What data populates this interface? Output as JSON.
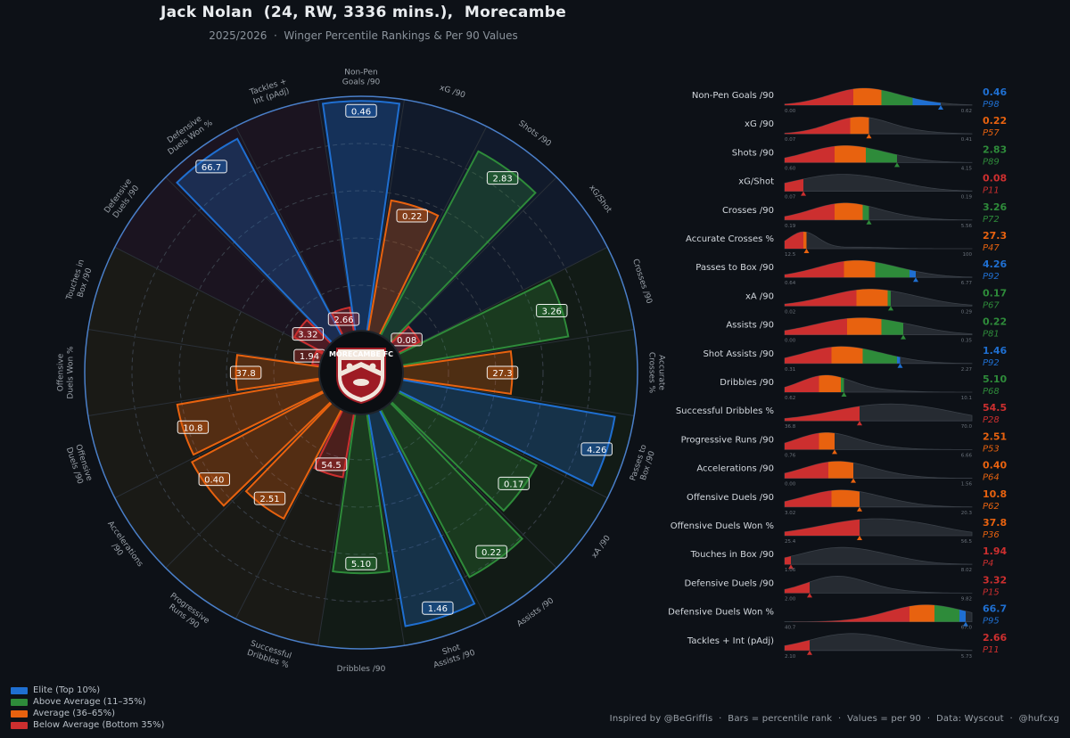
{
  "header": {
    "title": "Jack Nolan  (24, RW, 3336 mins.),  Morecambe",
    "subtitle": "2025/2026  ·  Winger Percentile Rankings & Per 90 Values"
  },
  "badge": {
    "text": "MORECAMBE FC"
  },
  "colors": {
    "elite": "#1f6fd1",
    "above": "#2e8b3a",
    "average": "#e8620f",
    "below": "#cc2f2f",
    "background": "#0d1117"
  },
  "legend": [
    {
      "label": "Elite (Top 10%)",
      "color": "#1f6fd1"
    },
    {
      "label": "Above Average (11–35%)",
      "color": "#2e8b3a"
    },
    {
      "label": "Average (36–65%)",
      "color": "#e8620f"
    },
    {
      "label": "Below Average (Bottom 35%)",
      "color": "#cc2f2f"
    }
  ],
  "footer": "Inspired by @BeGriffis  ·  Bars = percentile rank  ·  Values = per 90  ·  Data: Wyscout  ·  @hufcxg",
  "chart_data": {
    "type": "radial-bar",
    "radial_range": [
      0,
      100
    ],
    "metrics": [
      {
        "label": "Non-Pen Goals /90",
        "radar_label": "Non-Pen\nGoals /90",
        "value": "0.46",
        "percentile": 98,
        "tier": "elite",
        "p_label": "P98",
        "range": [
          "0.00",
          "0.62"
        ]
      },
      {
        "label": "xG /90",
        "radar_label": "xG /90",
        "value": "0.22",
        "percentile": 57,
        "tier": "average",
        "p_label": "P57",
        "range": [
          "0.07",
          "0.41"
        ]
      },
      {
        "label": "Shots /90",
        "radar_label": "Shots /90",
        "value": "2.83",
        "percentile": 89,
        "tier": "above",
        "p_label": "P89",
        "range": [
          "0.60",
          "4.15"
        ]
      },
      {
        "label": "xG/Shot",
        "radar_label": "xG/Shot",
        "value": "0.08",
        "percentile": 11,
        "tier": "below",
        "p_label": "P11",
        "range": [
          "0.07",
          "0.19"
        ]
      },
      {
        "label": "Crosses /90",
        "radar_label": "Crosses /90",
        "value": "3.26",
        "percentile": 72,
        "tier": "above",
        "p_label": "P72",
        "range": [
          "0.19",
          "5.56"
        ]
      },
      {
        "label": "Accurate Crosses %",
        "radar_label": "Accurate\nCrosses %",
        "value": "27.3",
        "percentile": 47,
        "tier": "average",
        "p_label": "P47",
        "range": [
          "12.5",
          "100"
        ]
      },
      {
        "label": "Passes to Box /90",
        "radar_label": "Passes to\nBox /90",
        "value": "4.26",
        "percentile": 92,
        "tier": "elite",
        "p_label": "P92",
        "range": [
          "0.64",
          "6.77"
        ]
      },
      {
        "label": "xA /90",
        "radar_label": "xA /90",
        "value": "0.17",
        "percentile": 67,
        "tier": "above",
        "p_label": "P67",
        "range": [
          "0.02",
          "0.29"
        ]
      },
      {
        "label": "Assists /90",
        "radar_label": "Assists /90",
        "value": "0.22",
        "percentile": 81,
        "tier": "above",
        "p_label": "P81",
        "range": [
          "0.00",
          "0.35"
        ]
      },
      {
        "label": "Shot Assists /90",
        "radar_label": "Shot\nAssists /90",
        "value": "1.46",
        "percentile": 92,
        "tier": "elite",
        "p_label": "P92",
        "range": [
          "0.31",
          "2.27"
        ]
      },
      {
        "label": "Dribbles /90",
        "radar_label": "Dribbles /90",
        "value": "5.10",
        "percentile": 68,
        "tier": "above",
        "p_label": "P68",
        "range": [
          "0.62",
          "10.1"
        ]
      },
      {
        "label": "Successful Dribbles %",
        "radar_label": "Successful\nDribbles %",
        "value": "54.5",
        "percentile": 28,
        "tier": "below",
        "p_label": "P28",
        "range": [
          "36.8",
          "70.0"
        ]
      },
      {
        "label": "Progressive Runs /90",
        "radar_label": "Progressive\nRuns /90",
        "value": "2.51",
        "percentile": 53,
        "tier": "average",
        "p_label": "P53",
        "range": [
          "0.76",
          "6.66"
        ]
      },
      {
        "label": "Accelerations /90",
        "radar_label": "Accelerations\n/90",
        "value": "0.40",
        "percentile": 64,
        "tier": "average",
        "p_label": "P64",
        "range": [
          "0.00",
          "1.56"
        ]
      },
      {
        "label": "Offensive Duels /90",
        "radar_label": "Offensive\nDuels /90",
        "value": "10.8",
        "percentile": 62,
        "tier": "average",
        "p_label": "P62",
        "range": [
          "3.02",
          "20.3"
        ]
      },
      {
        "label": "Offensive Duels Won %",
        "radar_label": "Offensive\nDuels Won %",
        "value": "37.8",
        "percentile": 36,
        "tier": "average",
        "p_label": "P36",
        "range": [
          "25.4",
          "56.5"
        ]
      },
      {
        "label": "Touches in Box /90",
        "radar_label": "Touches in\nBox /90",
        "value": "1.94",
        "percentile": 4,
        "tier": "below",
        "p_label": "P4",
        "range": [
          "1.06",
          "8.02"
        ]
      },
      {
        "label": "Defensive Duels /90",
        "radar_label": "Defensive\nDuels /90",
        "value": "3.32",
        "percentile": 15,
        "tier": "below",
        "p_label": "P15",
        "range": [
          "2.00",
          "9.82"
        ]
      },
      {
        "label": "Defensive Duels Won %",
        "radar_label": "Defensive\nDuels Won %",
        "value": "66.7",
        "percentile": 95,
        "tier": "elite",
        "p_label": "P95",
        "range": [
          "40.7",
          "67.0"
        ]
      },
      {
        "label": "Tackles + Int (pAdj)",
        "radar_label": "Tackles +\nInt (pAdj)",
        "value": "2.66",
        "percentile": 11,
        "tier": "below",
        "p_label": "P11",
        "range": [
          "2.10",
          "5.73"
        ]
      }
    ]
  }
}
